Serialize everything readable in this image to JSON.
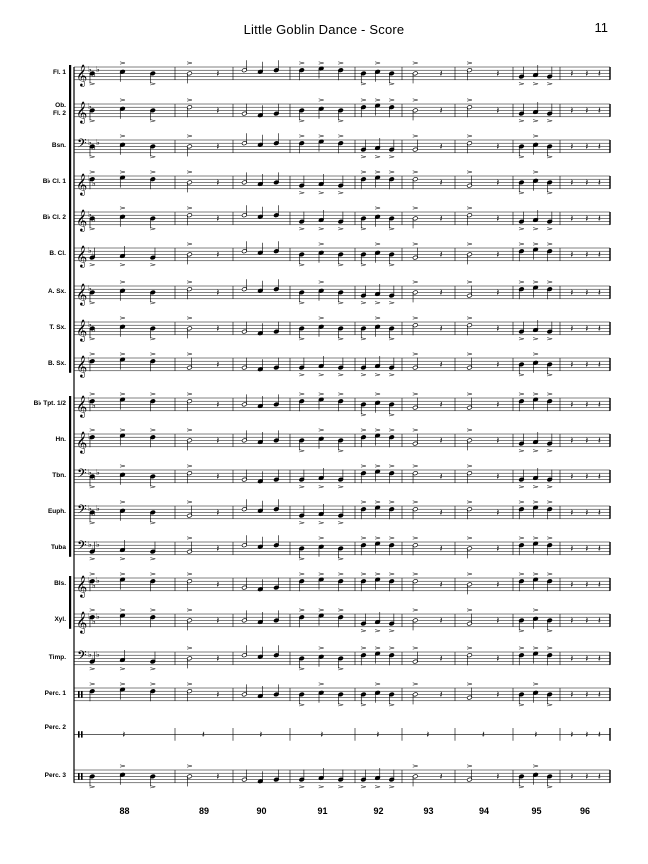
{
  "header": {
    "title": "Little Goblin Dance - Score",
    "page_number": "11"
  },
  "instruments": [
    "Fl. 1",
    "Ob.\nFl. 2",
    "Bsn.",
    "B♭ Cl. 1",
    "B♭ Cl. 2",
    "B. Cl.",
    "A. Sx.",
    "T. Sx.",
    "B. Sx.",
    "B♭ Tpt. 1/2",
    "Hn.",
    "Tbn.",
    "Euph.",
    "Tuba",
    "Bls.",
    "Xyl.",
    "Timp.",
    "Perc. 1",
    "Perc. 2",
    "Perc. 3"
  ],
  "measure_numbers": [
    "88",
    "89",
    "90",
    "91",
    "92",
    "93",
    "94",
    "95",
    "96"
  ]
}
